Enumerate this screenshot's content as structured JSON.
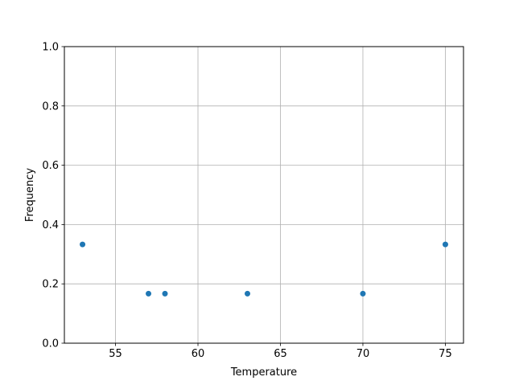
{
  "chart_data": {
    "type": "scatter",
    "title": "",
    "xlabel": "Temperature",
    "ylabel": "Frequency",
    "xlim": [
      51.9,
      76.1
    ],
    "ylim": [
      0,
      1.0
    ],
    "xticks": [
      55,
      60,
      65,
      70,
      75
    ],
    "xtick_labels": [
      "55",
      "60",
      "65",
      "70",
      "75"
    ],
    "yticks": [
      0,
      0.2,
      0.4,
      0.6,
      0.8,
      1.0
    ],
    "ytick_labels": [
      "0.0",
      "0.2",
      "0.4",
      "0.6",
      "0.8",
      "1.0"
    ],
    "grid": true,
    "color": "#1f77b4",
    "points": [
      {
        "x": 53,
        "y": 0.333
      },
      {
        "x": 57,
        "y": 0.167
      },
      {
        "x": 58,
        "y": 0.167
      },
      {
        "x": 63,
        "y": 0.167
      },
      {
        "x": 70,
        "y": 0.167
      },
      {
        "x": 75,
        "y": 0.333
      }
    ]
  }
}
